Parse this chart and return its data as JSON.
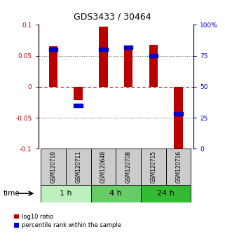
{
  "title": "GDS3433 / 30464",
  "samples": [
    "GSM120710",
    "GSM120711",
    "GSM120648",
    "GSM120708",
    "GSM120715",
    "GSM120716"
  ],
  "log10_ratio": [
    0.065,
    -0.022,
    0.097,
    0.062,
    0.068,
    -0.101
  ],
  "percentile_rank": [
    80,
    35,
    80,
    82,
    75,
    28
  ],
  "groups": [
    {
      "label": "1 h",
      "indices": [
        0,
        1
      ],
      "color": "#bef0be"
    },
    {
      "label": "4 h",
      "indices": [
        2,
        3
      ],
      "color": "#66cc66"
    },
    {
      "label": "24 h",
      "indices": [
        4,
        5
      ],
      "color": "#33bb33"
    }
  ],
  "ylim": [
    -0.1,
    0.1
  ],
  "yticks_left": [
    -0.1,
    -0.05,
    0,
    0.05,
    0.1
  ],
  "yticks_right": [
    0,
    25,
    50,
    75,
    100
  ],
  "bar_width": 0.35,
  "red_color": "#bb0000",
  "blue_color": "#0000cc",
  "time_label": "time",
  "legend_red": "log10 ratio",
  "legend_blue": "percentile rank within the sample",
  "sample_box_color": "#cccccc",
  "hline_dashed_color": "#cc0000",
  "hline_dotted_color": "#555555",
  "fig_width": 3.21,
  "fig_height": 3.54,
  "dpi": 100,
  "title_fontsize": 9,
  "tick_fontsize": 6.5,
  "sample_fontsize": 5.5,
  "group_fontsize": 8,
  "legend_fontsize": 6
}
